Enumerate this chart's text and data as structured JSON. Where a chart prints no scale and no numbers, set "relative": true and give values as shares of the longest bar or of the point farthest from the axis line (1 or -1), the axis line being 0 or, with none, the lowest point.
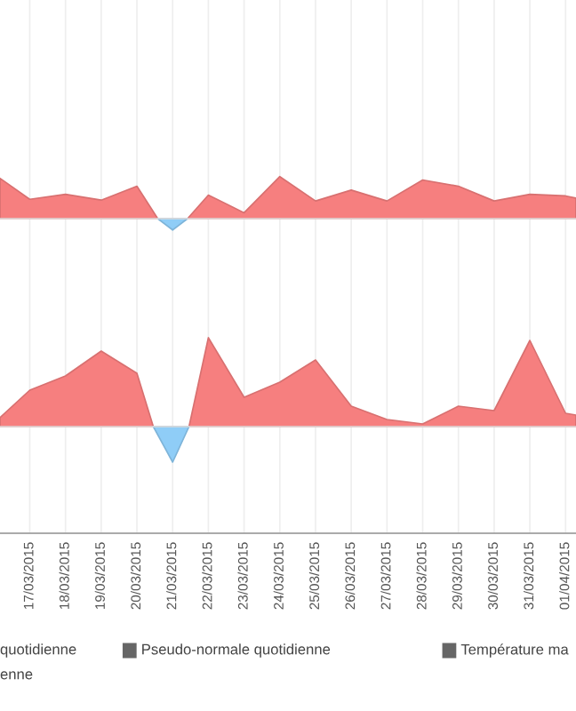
{
  "chart_data": [
    {
      "type": "area",
      "relative": true,
      "grid": "x",
      "tick_labels": false,
      "xlim": [
        "2015-03-16T04:00",
        "2015-04-01T07:00"
      ],
      "series": [
        {
          "color": "#f67f7f",
          "x": [
            "2015-03-16T04:00",
            "2015-03-17",
            "2015-03-18",
            "2015-03-19",
            "2015-03-20",
            "2015-03-20T14:00",
            "2015-03-21T10:00",
            "2015-03-22",
            "2015-03-23",
            "2015-03-24",
            "2015-03-25",
            "2015-03-26",
            "2015-03-27",
            "2015-03-28",
            "2015-03-29",
            "2015-03-30",
            "2015-03-31",
            "2015-04-01",
            "2015-04-01T07:00"
          ],
          "values": [
            0.96,
            0.46,
            0.58,
            0.44,
            0.77,
            0,
            0,
            0.56,
            0.14,
            1,
            0.42,
            0.68,
            0.42,
            0.92,
            0.77,
            0.42,
            0.58,
            0.54,
            0.49
          ]
        },
        {
          "color": "#8fcdf7",
          "x": [
            "2015-03-20T14:00",
            "2015-03-21",
            "2015-03-21T10:00"
          ],
          "values": [
            0,
            -0.27,
            0
          ]
        }
      ]
    },
    {
      "type": "area",
      "relative": true,
      "grid": "x",
      "tick_labels": "x",
      "xlim": [
        "2015-03-16T04:00",
        "2015-04-01T07:00"
      ],
      "xticks": [
        {
          "value": "2015-03-17",
          "label": "17/03/2015"
        },
        {
          "value": "2015-03-18",
          "label": "18/03/2015"
        },
        {
          "value": "2015-03-19",
          "label": "19/03/2015"
        },
        {
          "value": "2015-03-20",
          "label": "20/03/2015"
        },
        {
          "value": "2015-03-21",
          "label": "21/03/2015"
        },
        {
          "value": "2015-03-22",
          "label": "22/03/2015"
        },
        {
          "value": "2015-03-23",
          "label": "23/03/2015"
        },
        {
          "value": "2015-03-24",
          "label": "24/03/2015"
        },
        {
          "value": "2015-03-25",
          "label": "25/03/2015"
        },
        {
          "value": "2015-03-26",
          "label": "26/03/2015"
        },
        {
          "value": "2015-03-27",
          "label": "27/03/2015"
        },
        {
          "value": "2015-03-28",
          "label": "28/03/2015"
        },
        {
          "value": "2015-03-29",
          "label": "29/03/2015"
        },
        {
          "value": "2015-03-30",
          "label": "30/03/2015"
        },
        {
          "value": "2015-03-31",
          "label": "31/03/2015"
        },
        {
          "value": "2015-04-01",
          "label": "01/04/2015"
        }
      ],
      "series": [
        {
          "color": "#f67f7f",
          "x": [
            "2015-03-16T04:00",
            "2015-03-17",
            "2015-03-18",
            "2015-03-19",
            "2015-03-20",
            "2015-03-20T11:00",
            "2015-03-21T11:00",
            "2015-03-22",
            "2015-03-23",
            "2015-03-24",
            "2015-03-25",
            "2015-03-26",
            "2015-03-27",
            "2015-03-28",
            "2015-03-29",
            "2015-03-30",
            "2015-03-31",
            "2015-04-01",
            "2015-04-01T07:00"
          ],
          "values": [
            0.1,
            0.41,
            0.57,
            0.85,
            0.6,
            0,
            0,
            1,
            0.33,
            0.5,
            0.75,
            0.23,
            0.08,
            0.03,
            0.23,
            0.18,
            0.97,
            0.15,
            0.13
          ]
        },
        {
          "color": "#8fcdf7",
          "x": [
            "2015-03-20T11:00",
            "2015-03-21",
            "2015-03-21T11:00"
          ],
          "values": [
            0,
            -0.4,
            0
          ]
        }
      ],
      "annotations": [
        "quotidienne",
        "enne",
        "Pseudo-normale quotidienne",
        "Température ma"
      ]
    }
  ]
}
